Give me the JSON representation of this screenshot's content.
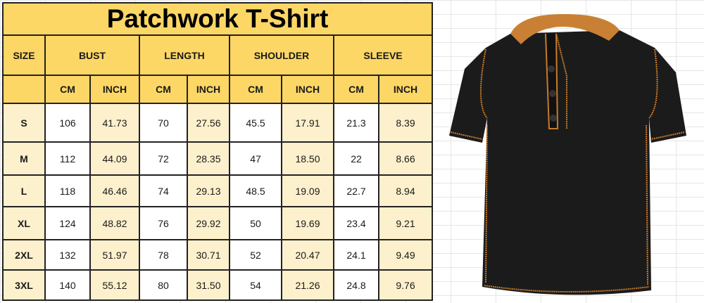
{
  "title": "Patchwork T-Shirt",
  "headers": {
    "size": "SIZE",
    "groups": [
      "BUST",
      "LENGTH",
      "SHOULDER",
      "SLEEVE"
    ],
    "cm": "CM",
    "inch": "INCH"
  },
  "rows": [
    {
      "size": "S",
      "values": [
        "106",
        "41.73",
        "70",
        "27.56",
        "45.5",
        "17.91",
        "21.3",
        "8.39"
      ]
    },
    {
      "size": "M",
      "values": [
        "112",
        "44.09",
        "72",
        "28.35",
        "47",
        "18.50",
        "22",
        "8.66"
      ]
    },
    {
      "size": "L",
      "values": [
        "118",
        "46.46",
        "74",
        "29.13",
        "48.5",
        "19.09",
        "22.7",
        "8.94"
      ]
    },
    {
      "size": "XL",
      "values": [
        "124",
        "48.82",
        "76",
        "29.92",
        "50",
        "19.69",
        "23.4",
        "9.21"
      ]
    },
    {
      "size": "2XL",
      "values": [
        "132",
        "51.97",
        "78",
        "30.71",
        "52",
        "20.47",
        "24.1",
        "9.49"
      ]
    },
    {
      "size": "3XL",
      "values": [
        "140",
        "55.12",
        "80",
        "31.50",
        "54",
        "21.26",
        "24.8",
        "9.76"
      ]
    }
  ],
  "colors": {
    "header": "#fcd766",
    "light": "#fdf0cc",
    "shirt": "#1b1b1b",
    "stitch": "#c97a2a"
  }
}
